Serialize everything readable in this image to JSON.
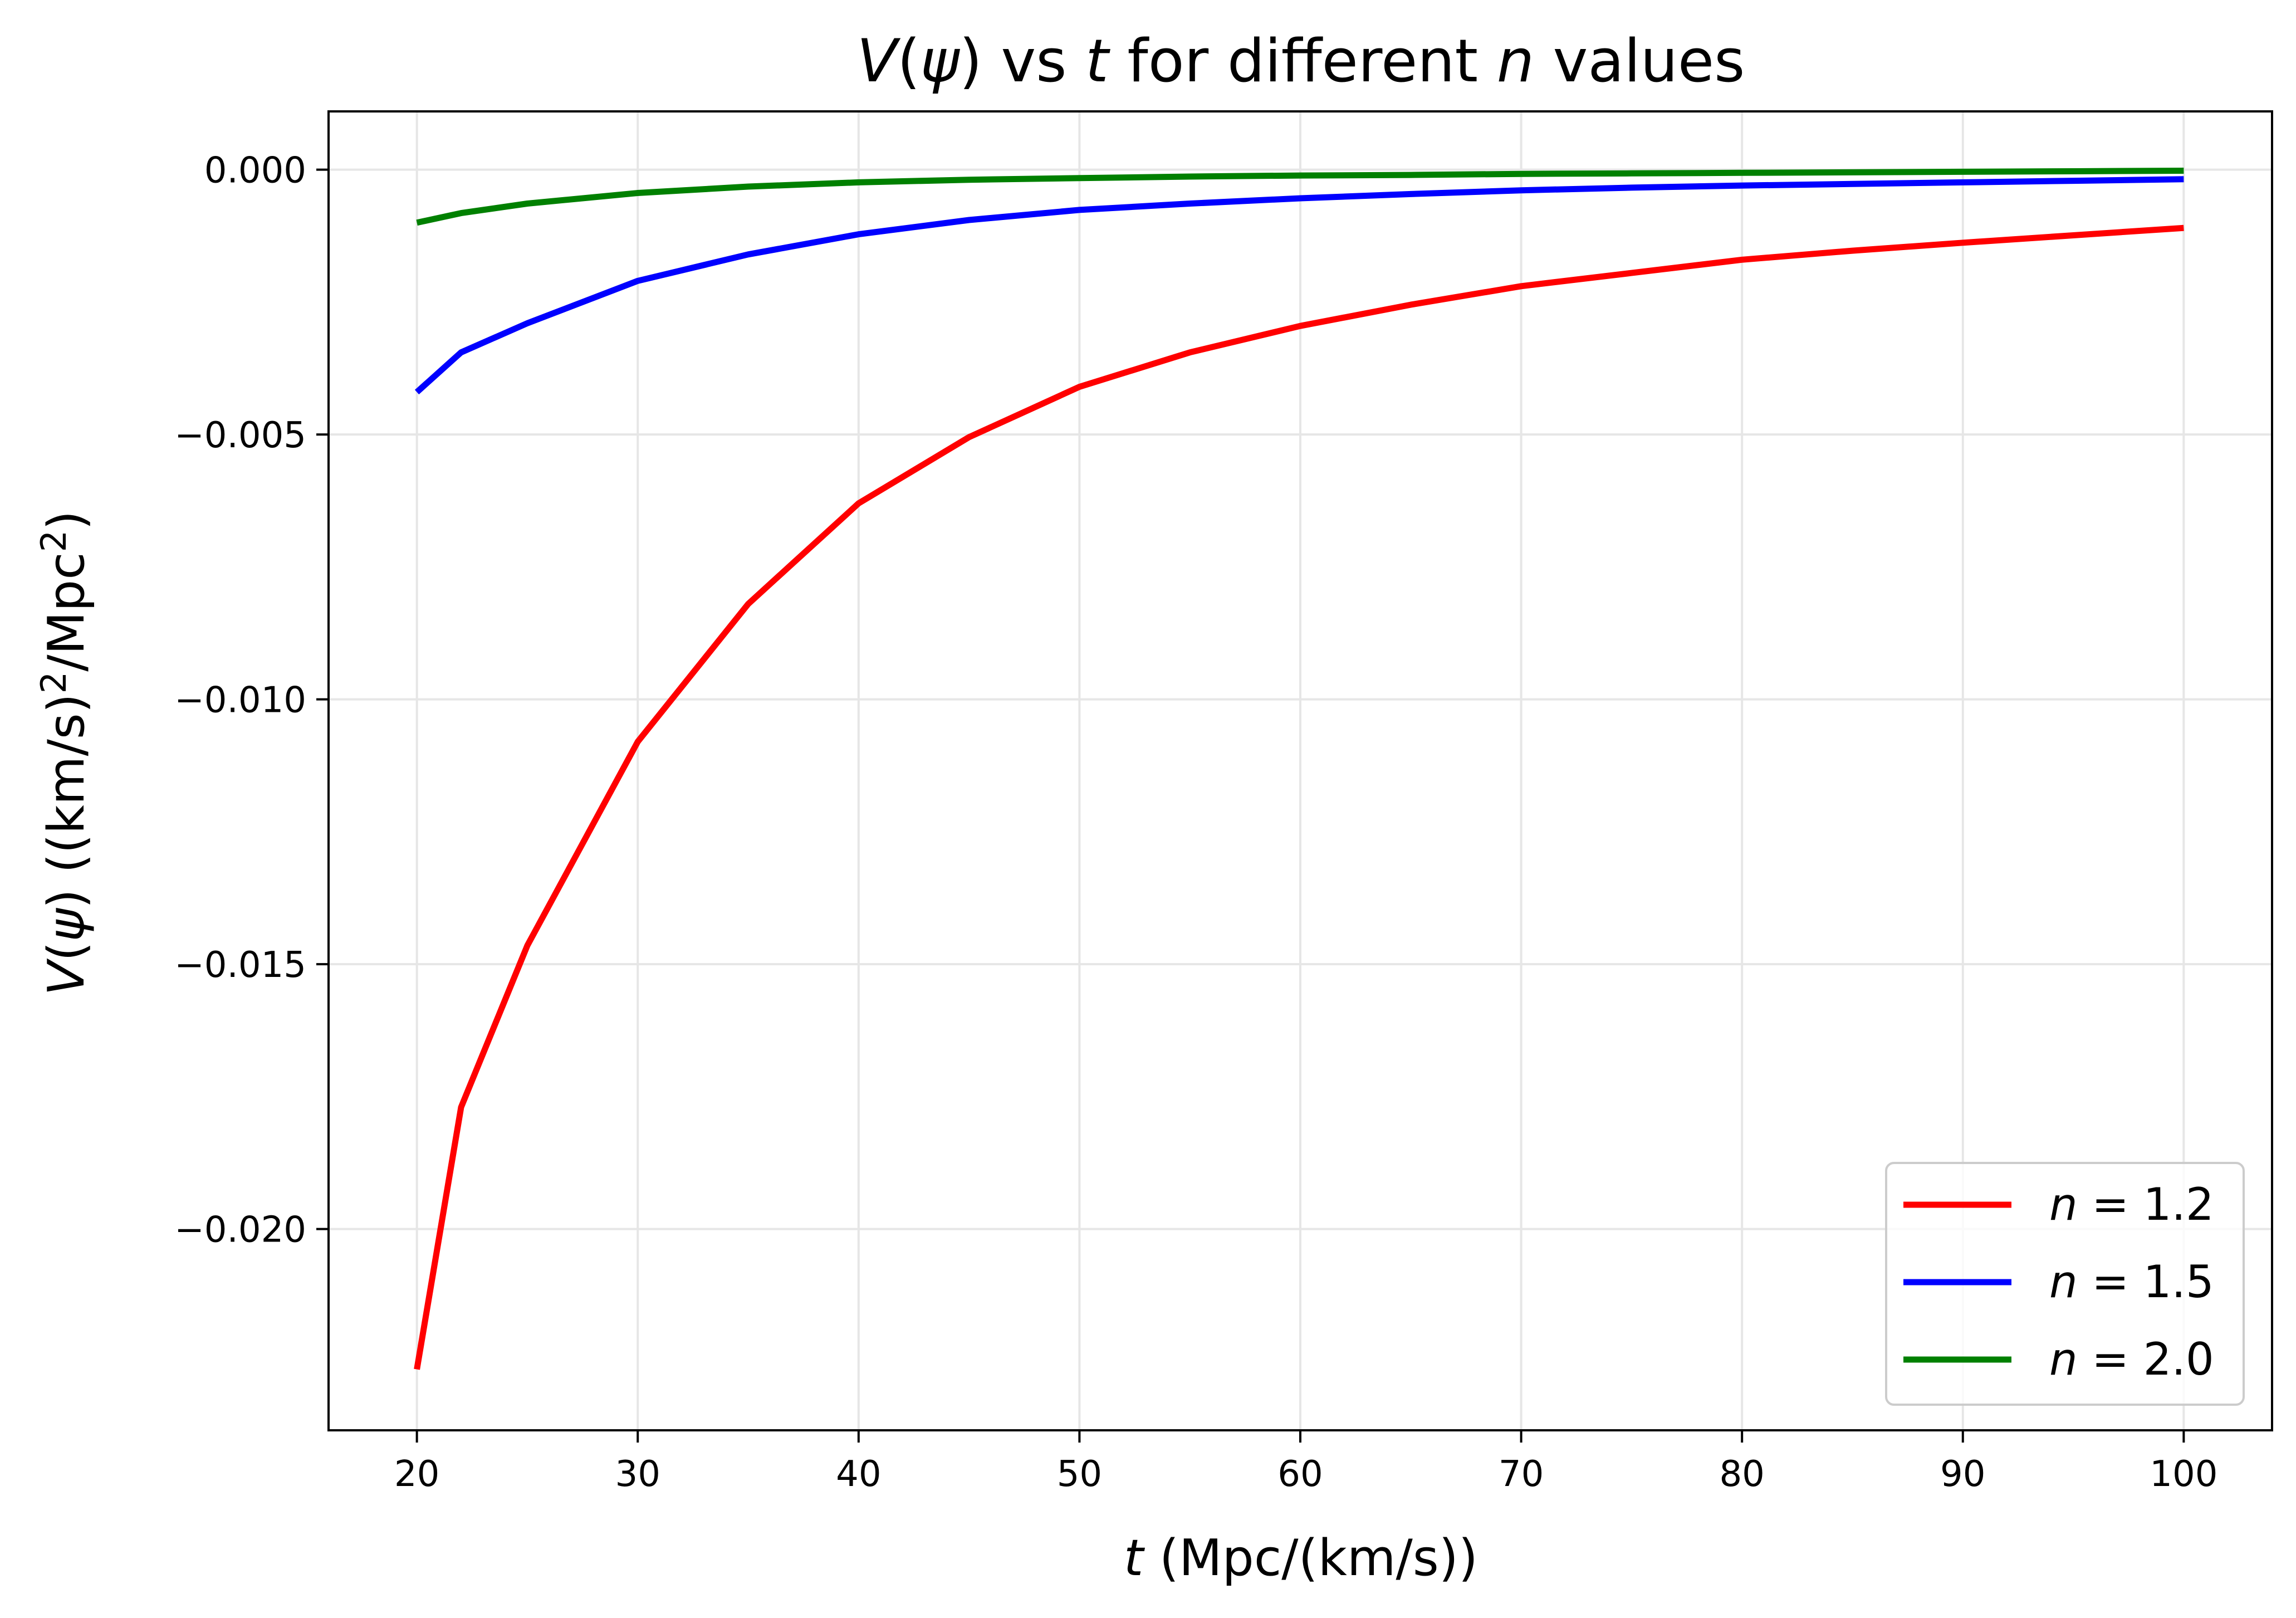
{
  "chart_data": {
    "type": "line",
    "title": {
      "italic_a": "V",
      "mid_a": "(",
      "italic_b": "ψ",
      "mid_b": ") vs ",
      "italic_c": "t",
      "mid_c": " for different ",
      "italic_d": "n",
      "tail": " values"
    },
    "xlabel": {
      "italic": "t",
      "rest": " (Mpc/(km/s))"
    },
    "ylabel": {
      "italic_a": "V",
      "mid_a": "(",
      "italic_b": "ψ",
      "mid_b": ") ((km/s)",
      "sup_a": "2",
      "mid_c": "/Mpc",
      "sup_b": "2",
      "tail": ")"
    },
    "xlim": [
      16,
      104
    ],
    "ylim": [
      -0.0238,
      0.0011
    ],
    "x_ticks": [
      20,
      30,
      40,
      50,
      60,
      70,
      80,
      90,
      100
    ],
    "x_tick_labels": [
      "20",
      "30",
      "40",
      "50",
      "60",
      "70",
      "80",
      "90",
      "100"
    ],
    "y_ticks": [
      0.0,
      -0.005,
      -0.01,
      -0.015,
      -0.02
    ],
    "y_tick_labels": [
      "0.000",
      "−0.005",
      "−0.010",
      "−0.015",
      "−0.020"
    ],
    "grid": true,
    "legend_position": "bottom-right",
    "x": [
      20,
      22,
      25,
      30,
      35,
      40,
      45,
      50,
      55,
      60,
      65,
      70,
      75,
      80,
      85,
      90,
      95,
      100
    ],
    "series": [
      {
        "name": "n = 1.2",
        "label_italic": "n",
        "label_rest": " = 1.2",
        "color": "#ff0000",
        "values": [
          -0.02265,
          -0.0177,
          -0.01465,
          -0.0108,
          -0.0082,
          -0.0063,
          -0.00505,
          -0.0041,
          -0.00345,
          -0.00295,
          -0.00255,
          -0.0022,
          -0.00195,
          -0.0017,
          -0.00153,
          -0.00138,
          -0.00124,
          -0.0011
        ]
      },
      {
        "name": "n = 1.5",
        "label_italic": "n",
        "label_rest": " = 1.5",
        "color": "#0000ff",
        "values": [
          -0.0042,
          -0.00345,
          -0.0029,
          -0.0021,
          -0.0016,
          -0.00122,
          -0.00095,
          -0.00076,
          -0.00064,
          -0.00054,
          -0.00046,
          -0.00039,
          -0.00034,
          -0.0003,
          -0.00027,
          -0.00024,
          -0.00021,
          -0.00018
        ]
      },
      {
        "name": "n = 2.0",
        "label_italic": "n",
        "label_rest": " = 2.0",
        "color": "#008000",
        "values": [
          -0.001,
          -0.00082,
          -0.00064,
          -0.00044,
          -0.00032,
          -0.00024,
          -0.00019,
          -0.00016,
          -0.00013,
          -0.00011,
          -0.0001,
          -8e-05,
          -7e-05,
          -6e-05,
          -5e-05,
          -4e-05,
          -3e-05,
          -2e-05
        ]
      }
    ]
  }
}
